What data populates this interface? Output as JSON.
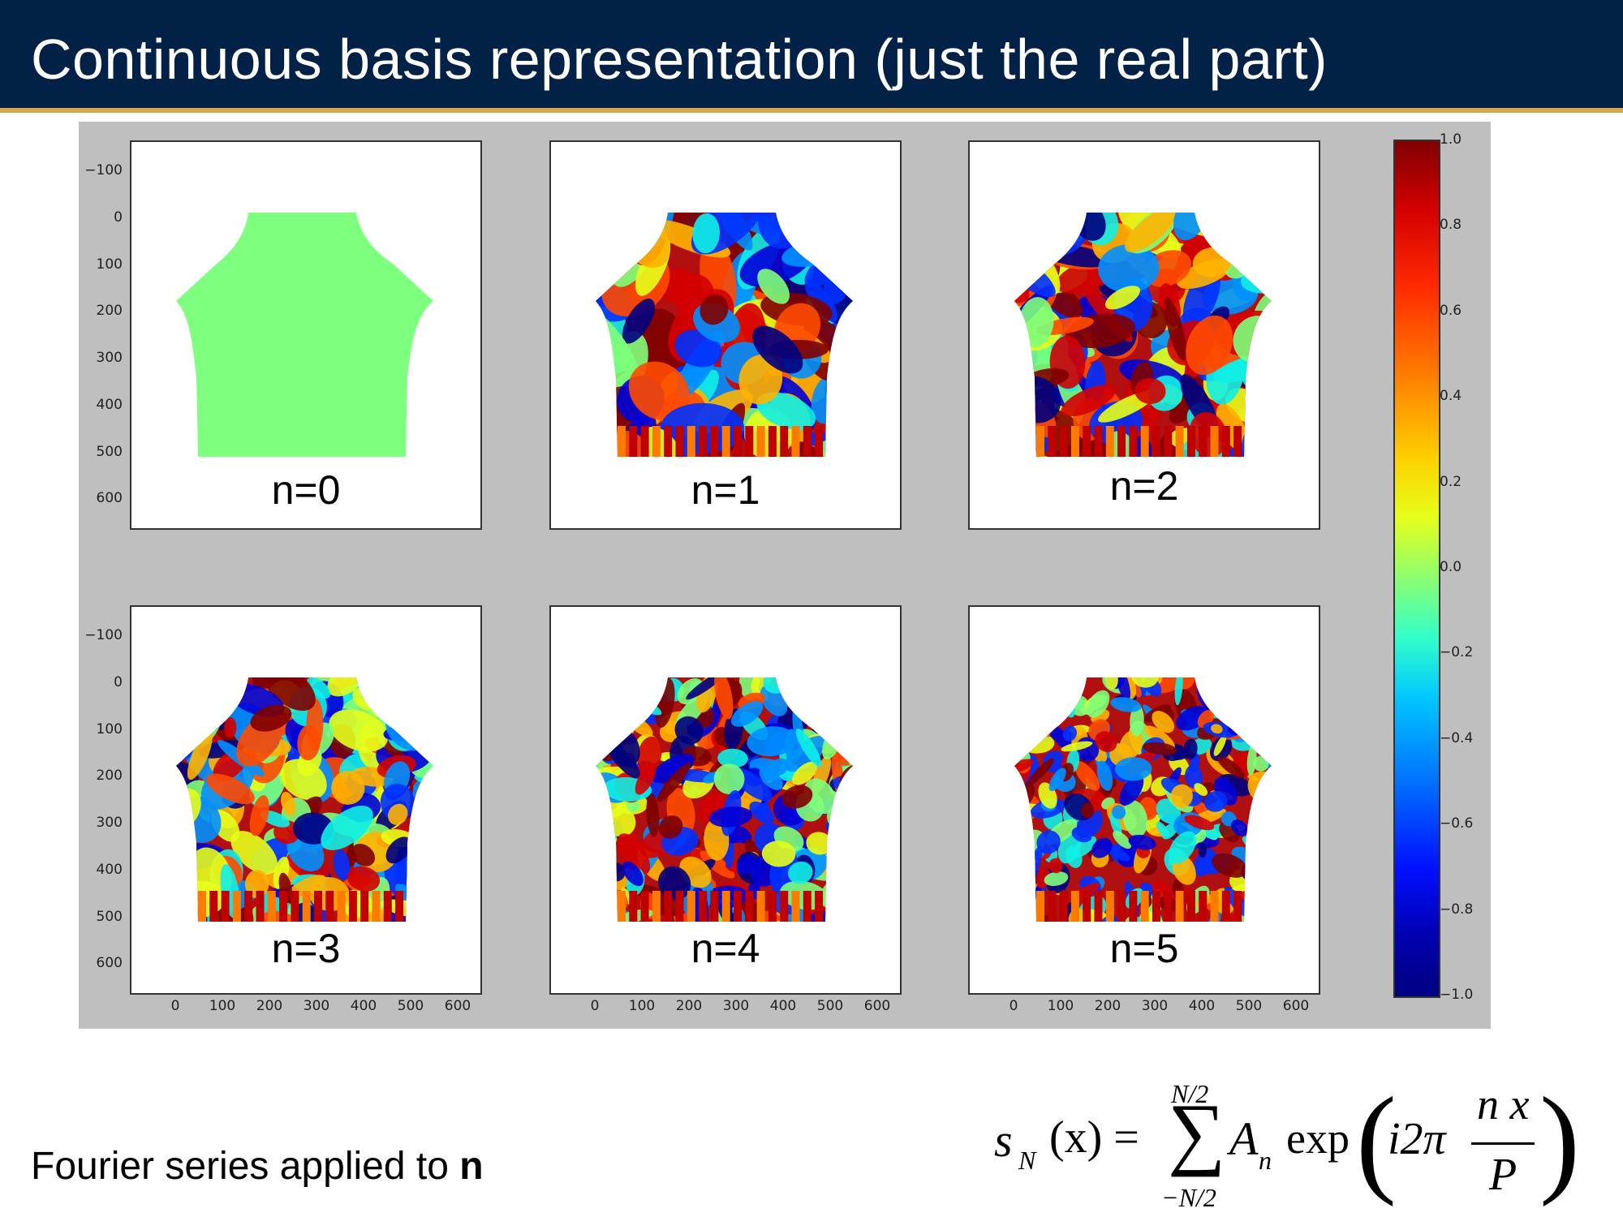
{
  "slide": {
    "title": "Continuous basis representation (just the real part)",
    "footer_prefix": "Fourier series applied to ",
    "footer_bold": "n",
    "colors": {
      "header_bg": "#022147",
      "header_rule": "#d8a64a",
      "figure_bg": "#bfbfbf",
      "flat_field": "#7fff7f"
    }
  },
  "figure": {
    "panels": [
      {
        "label": "n=0"
      },
      {
        "label": "n=1"
      },
      {
        "label": "n=2"
      },
      {
        "label": "n=3"
      },
      {
        "label": "n=4"
      },
      {
        "label": "n=5"
      }
    ],
    "y_ticks": [
      "−100",
      "0",
      "100",
      "200",
      "300",
      "400",
      "500",
      "600"
    ],
    "x_ticks": [
      "0",
      "100",
      "200",
      "300",
      "400",
      "500",
      "600"
    ],
    "colorbar": {
      "ticks": [
        "1.0",
        "0.8",
        "0.6",
        "0.4",
        "0.2",
        "0.0",
        "−0.2",
        "−0.4",
        "−0.6",
        "−0.8",
        "−1.0"
      ],
      "colormap": "jet"
    }
  },
  "formula": {
    "lhs_s": "s",
    "lhs_sub": "N",
    "lhs_arg": "(x) =",
    "sum_upper": "N/2",
    "sum_sign": "∑",
    "sum_lower": "−N/2",
    "coef": "A",
    "coef_sub": "n",
    "func": "exp",
    "lparen": "(",
    "factor": "i2π",
    "numerator": "n x",
    "denominator": "P",
    "rparen": ")"
  }
}
